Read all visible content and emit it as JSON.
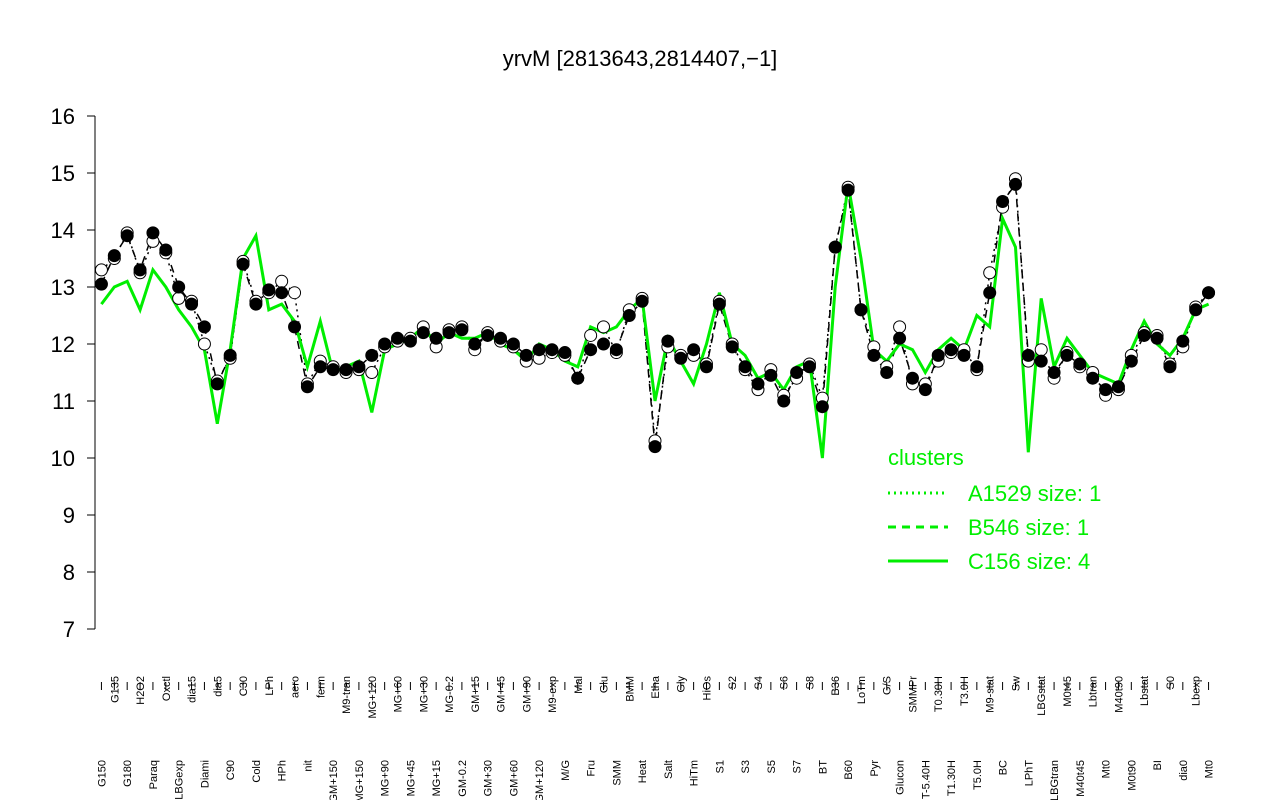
{
  "chart_data": {
    "type": "line",
    "title": "yrvM [2813643,2814407,−1]",
    "categories": [
      "G150",
      "G135",
      "G180",
      "H2O2",
      "Paraq",
      "Oxctl",
      "LBGexp",
      "dia15",
      "Diami",
      "dia5",
      "C90",
      "C30",
      "Cold",
      "LPh",
      "HPh",
      "aero",
      "nit",
      "ferm",
      "GM+150",
      "M9-tran",
      "MG+150",
      "MG+120",
      "MG+90",
      "MG+60",
      "MG+45",
      "MG+30",
      "MG+15",
      "MG-0.2",
      "GM-0.2",
      "GM+15",
      "GM+30",
      "GM+45",
      "GM+60",
      "GM+90",
      "GM+120",
      "M9-exp",
      "M/G",
      "Mal",
      "Fru",
      "Glu",
      "SMM",
      "BMM",
      "Heat",
      "Etha",
      "Salt",
      "Gly",
      "HiTm",
      "HiOs",
      "S1",
      "S2",
      "S3",
      "S4",
      "S5",
      "S6",
      "S7",
      "S8",
      "BT",
      "B36",
      "B60",
      "LoTm",
      "Pyr",
      "G/S",
      "Glucon",
      "SMMPr",
      "T-5.40H",
      "T0.30H",
      "T1.30H",
      "T3.0H",
      "T5.0H",
      "M9-stat",
      "BC",
      "Sw",
      "LPhT",
      "LBGstat",
      "LBGtran",
      "M0t45",
      "M40t45",
      "Lbtran",
      "Mt0",
      "M40t90",
      "M0t90",
      "Lbstat",
      "BI",
      "S0",
      "dia0",
      "Lbexp",
      "Mt0"
    ],
    "series": [
      {
        "name": "A1529 size: 1",
        "color": "#000000",
        "style": "dotted",
        "marker": "open",
        "values": [
          13.3,
          13.5,
          13.95,
          13.25,
          13.8,
          13.6,
          12.8,
          12.75,
          12.0,
          11.35,
          11.75,
          13.45,
          12.75,
          12.9,
          13.1,
          12.9,
          11.3,
          11.7,
          11.6,
          11.5,
          11.55,
          11.5,
          11.95,
          12.05,
          12.1,
          12.3,
          11.95,
          12.25,
          12.3,
          11.9,
          12.2,
          12.05,
          11.95,
          11.7,
          11.75,
          11.85,
          11.8,
          11.4,
          12.15,
          12.3,
          11.85,
          12.6,
          12.8,
          10.3,
          11.95,
          11.8,
          11.8,
          11.65,
          12.75,
          12.0,
          11.55,
          11.2,
          11.55,
          11.1,
          11.4,
          11.65,
          11.05,
          13.7,
          14.75,
          12.6,
          11.95,
          11.6,
          12.3,
          11.3,
          11.3,
          11.7,
          11.85,
          11.9,
          11.55,
          13.25,
          14.4,
          14.9,
          11.7,
          11.9,
          11.4,
          11.85,
          11.6,
          11.5,
          11.1,
          11.2,
          11.8,
          12.2,
          12.15,
          11.65,
          11.95,
          12.65,
          12.9
        ]
      },
      {
        "name": "B546 size: 1",
        "color": "#000000",
        "style": "dashed",
        "marker": "filled",
        "values": [
          13.05,
          13.55,
          13.9,
          13.3,
          13.95,
          13.65,
          13.0,
          12.7,
          12.3,
          11.3,
          11.8,
          13.4,
          12.7,
          12.95,
          12.9,
          12.3,
          11.25,
          11.6,
          11.55,
          11.55,
          11.6,
          11.8,
          12.0,
          12.1,
          12.05,
          12.2,
          12.1,
          12.2,
          12.25,
          12.0,
          12.15,
          12.1,
          12.0,
          11.8,
          11.9,
          11.9,
          11.85,
          11.4,
          11.9,
          12.0,
          11.9,
          12.5,
          12.75,
          10.2,
          12.05,
          11.75,
          11.9,
          11.6,
          12.7,
          11.95,
          11.6,
          11.3,
          11.45,
          11.0,
          11.5,
          11.6,
          10.9,
          13.7,
          14.7,
          12.6,
          11.8,
          11.5,
          12.1,
          11.4,
          11.2,
          11.8,
          11.9,
          11.8,
          11.6,
          12.9,
          14.5,
          14.8,
          11.8,
          11.7,
          11.5,
          11.8,
          11.65,
          11.4,
          11.2,
          11.25,
          11.7,
          12.15,
          12.1,
          11.6,
          12.05,
          12.6,
          12.9
        ]
      },
      {
        "name": "C156 size: 4",
        "color": "#00ee00",
        "style": "solid",
        "marker": "none",
        "values": [
          12.7,
          13.0,
          13.1,
          12.6,
          13.3,
          13.0,
          12.6,
          12.3,
          11.9,
          10.6,
          11.9,
          13.5,
          13.9,
          12.6,
          12.7,
          12.4,
          11.6,
          12.4,
          11.5,
          11.6,
          11.7,
          10.8,
          11.9,
          12.0,
          12.1,
          12.3,
          12.0,
          12.2,
          12.1,
          12.1,
          12.2,
          12.0,
          11.9,
          11.7,
          12.0,
          11.9,
          11.7,
          11.6,
          12.3,
          12.2,
          12.3,
          12.6,
          12.8,
          11.0,
          12.1,
          11.7,
          11.3,
          12.0,
          12.9,
          12.0,
          11.8,
          11.4,
          11.5,
          11.2,
          11.6,
          11.7,
          10.0,
          13.0,
          14.8,
          13.5,
          11.9,
          11.7,
          12.0,
          11.9,
          11.5,
          11.9,
          12.1,
          11.9,
          12.5,
          12.3,
          14.2,
          13.7,
          10.1,
          12.8,
          11.6,
          12.1,
          11.8,
          11.5,
          11.4,
          11.3,
          11.9,
          12.4,
          12.0,
          11.8,
          12.1,
          12.6,
          12.7
        ]
      }
    ],
    "ylim": [
      7,
      16
    ],
    "yticks": [
      7,
      8,
      9,
      10,
      11,
      12,
      13,
      14,
      15,
      16
    ],
    "legend_title": "clusters",
    "legend_position": "right"
  }
}
